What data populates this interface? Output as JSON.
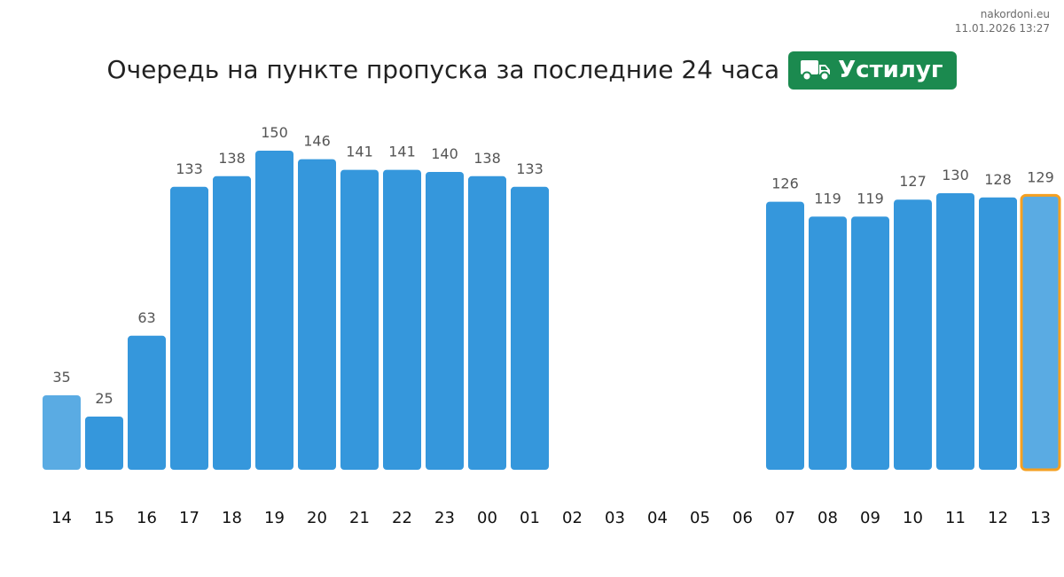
{
  "source": {
    "site": "nakordoni.eu",
    "timestamp": "11.01.2026 13:27"
  },
  "header": {
    "title": "Очередь на пункте пропуска за последние 24 часа",
    "checkpoint": "Устилуг",
    "checkpoint_icon": "truck-icon",
    "badge_color": "#1b8a4f"
  },
  "colors": {
    "bar": "#3597dc",
    "bar_light": "#5aabe3",
    "highlight_border": "#f5a021"
  },
  "chart_data": {
    "type": "bar",
    "title": "Очередь на пункте пропуска за последние 24 часа",
    "xlabel": "",
    "ylabel": "",
    "categories": [
      "14",
      "15",
      "16",
      "17",
      "18",
      "19",
      "20",
      "21",
      "22",
      "23",
      "00",
      "01",
      "02",
      "03",
      "04",
      "05",
      "06",
      "07",
      "08",
      "09",
      "10",
      "11",
      "12",
      "13"
    ],
    "values": [
      35,
      25,
      63,
      133,
      138,
      150,
      146,
      141,
      141,
      140,
      138,
      133,
      null,
      null,
      null,
      null,
      null,
      126,
      119,
      119,
      127,
      130,
      128,
      129
    ],
    "light_bars": [
      0,
      23
    ],
    "highlighted_bar": 23,
    "ylim": [
      0,
      150
    ],
    "grid": false,
    "legend": "none"
  }
}
